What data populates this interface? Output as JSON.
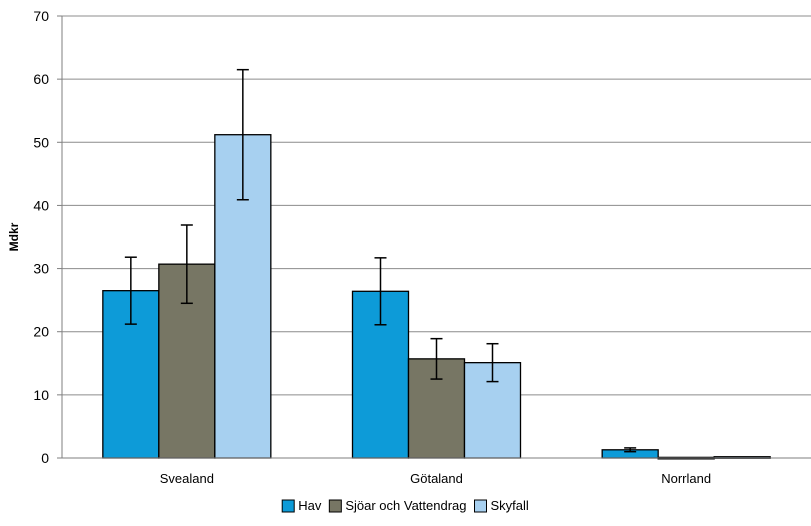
{
  "chart_data": {
    "type": "bar",
    "ylabel": "Mdkr",
    "ylim": [
      0,
      70
    ],
    "yticks": [
      0,
      10,
      20,
      30,
      40,
      50,
      60,
      70
    ],
    "categories": [
      "Svealand",
      "Götaland",
      "Norrland"
    ],
    "grid": true,
    "legend_position": "bottom",
    "series": [
      {
        "name": "Hav",
        "color": "#0d9bd8",
        "values": [
          26.5,
          26.4,
          1.3
        ],
        "error": [
          5.3,
          5.3,
          0.3
        ]
      },
      {
        "name": "Sjöar och Vattendrag",
        "color": "#777664",
        "values": [
          30.7,
          15.7,
          0.1
        ],
        "error": [
          6.2,
          3.2,
          0.0
        ]
      },
      {
        "name": "Skyfall",
        "color": "#a7d0f0",
        "values": [
          51.2,
          15.1,
          0.2
        ],
        "error": [
          10.3,
          3.0,
          0.0
        ]
      }
    ]
  }
}
